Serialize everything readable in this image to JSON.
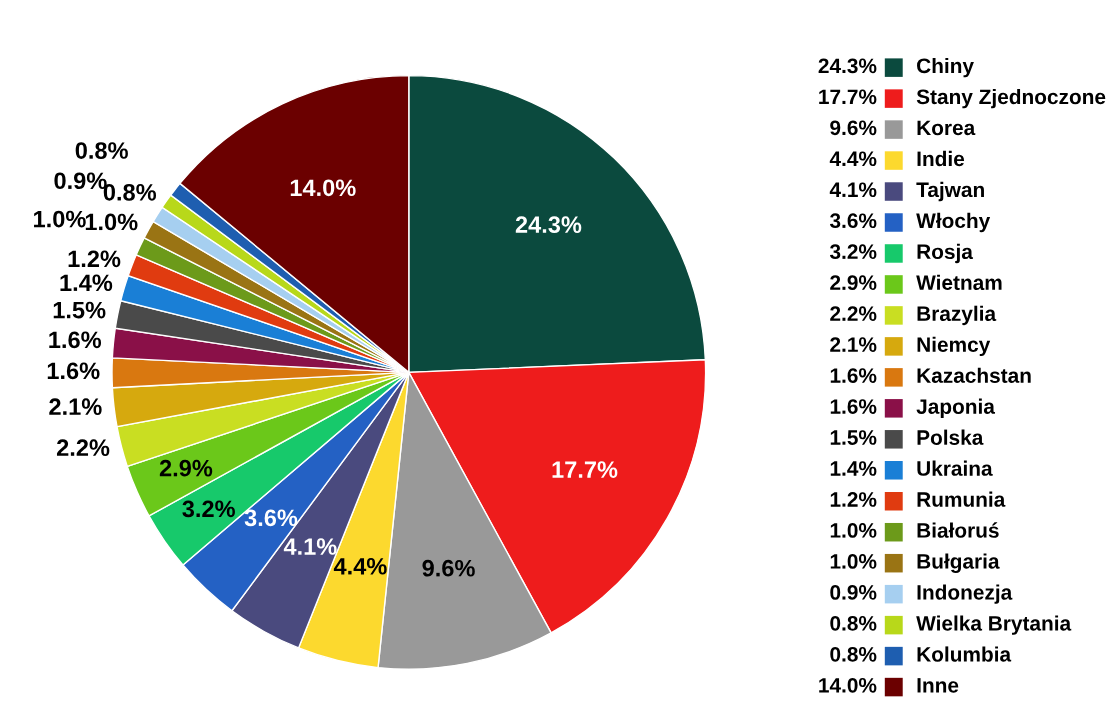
{
  "chart_data": {
    "type": "pie",
    "categories": [
      "Chiny",
      "Stany Zjednoczone",
      "Korea",
      "Indie",
      "Tajwan",
      "Włochy",
      "Rosja",
      "Wietnam",
      "Brazylia",
      "Niemcy",
      "Kazachstan",
      "Japonia",
      "Polska",
      "Ukraina",
      "Rumunia",
      "Białoruś",
      "Bułgaria",
      "Indonezja",
      "Wielka Brytania",
      "Kolumbia",
      "Inne"
    ],
    "values": [
      24.3,
      17.7,
      9.6,
      4.4,
      4.1,
      3.6,
      3.2,
      2.9,
      2.2,
      2.1,
      1.6,
      1.6,
      1.5,
      1.4,
      1.2,
      1.0,
      1.0,
      0.9,
      0.8,
      0.8,
      14.0
    ],
    "value_labels": [
      "24.3%",
      "17.7%",
      "9.6%",
      "4.4%",
      "4.1%",
      "3.6%",
      "3.2%",
      "2.9%",
      "2.2%",
      "2.1%",
      "1.6%",
      "1.6%",
      "1.5%",
      "1.4%",
      "1.2%",
      "1.0%",
      "1.0%",
      "0.9%",
      "0.8%",
      "0.8%",
      "14.0%"
    ],
    "colors": [
      "#0b4a3e",
      "#ee1c1c",
      "#999999",
      "#fcd92e",
      "#4a4a7e",
      "#2461c4",
      "#17c96b",
      "#6bc81a",
      "#c9de22",
      "#d6a90e",
      "#d97810",
      "#8a1048",
      "#4a4a4a",
      "#1a7fd6",
      "#e03b10",
      "#6c9a1a",
      "#9a7414",
      "#a6cff0",
      "#b8d81a",
      "#1e5eb0",
      "#6b0000"
    ],
    "legend": "right"
  }
}
